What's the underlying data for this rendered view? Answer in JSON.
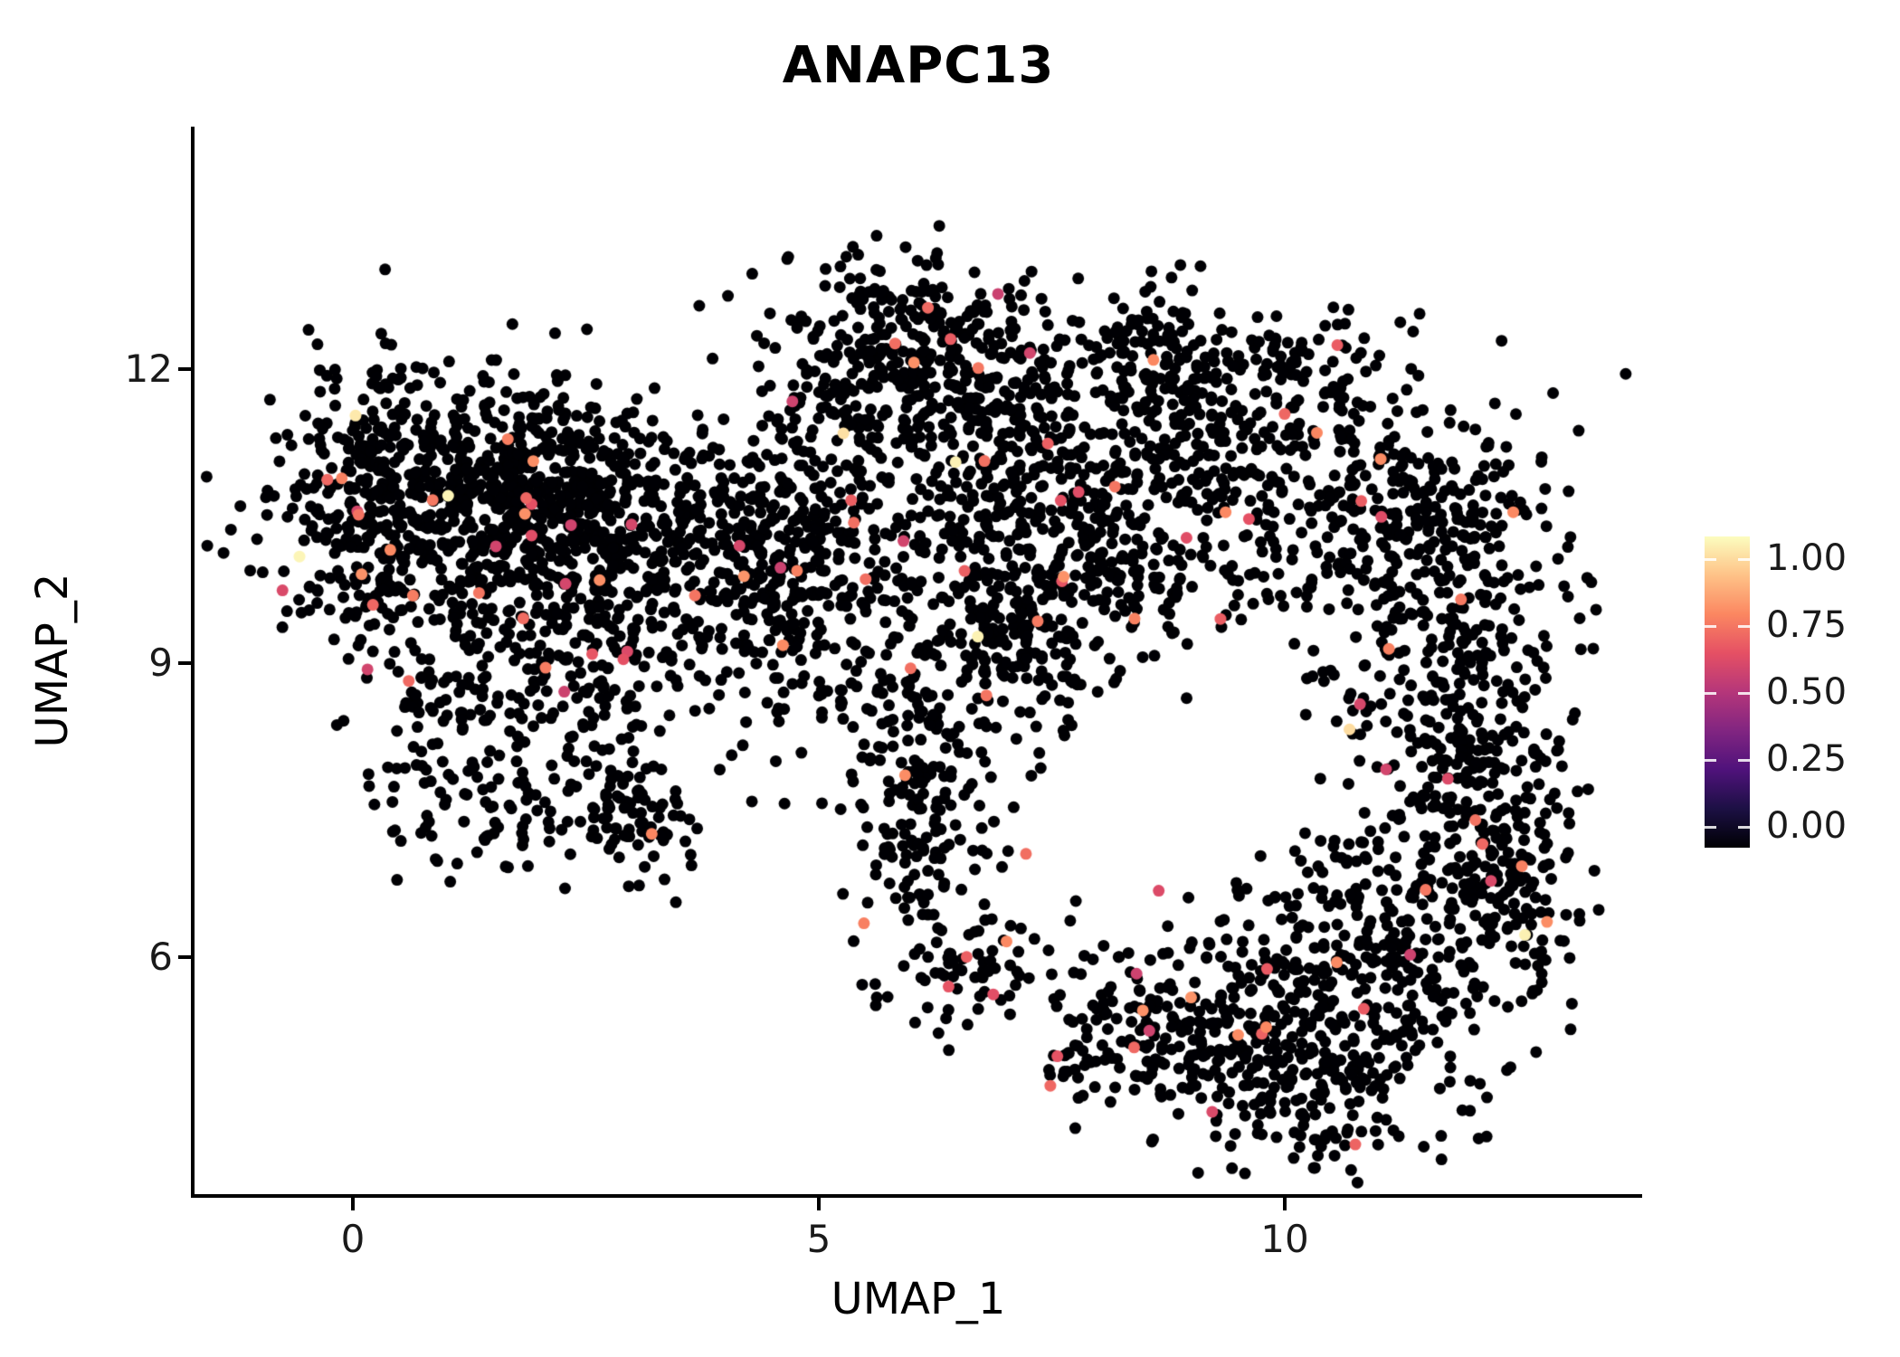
{
  "title": "ANAPC13",
  "axes": {
    "x": {
      "label": "UMAP_1",
      "ticks": [
        "0",
        "5",
        "10"
      ]
    },
    "y": {
      "label": "UMAP_2",
      "ticks": [
        "12",
        "9",
        "6"
      ]
    }
  },
  "colorbar": {
    "labels": [
      "1.00",
      "0.75",
      "0.50",
      "0.25",
      "0.00"
    ],
    "colormap": "magma",
    "low_color": "#000004",
    "high_color": "#fcfdbf"
  },
  "chart_data": {
    "type": "scatter",
    "title": "ANAPC13",
    "xlabel": "UMAP_1",
    "ylabel": "UMAP_2",
    "xlim": [
      -1.7,
      13.84
    ],
    "ylim": [
      3.58,
      14.475
    ],
    "x_ticks": [
      0,
      5,
      10
    ],
    "y_ticks": [
      6,
      9,
      12
    ],
    "legend_values": [
      1.0,
      0.75,
      0.5,
      0.25,
      0.0
    ],
    "colormap": "magma",
    "colormap_anchors": [
      [
        0.0,
        [
          0,
          0,
          4
        ]
      ],
      [
        0.125,
        [
          28,
          16,
          68
        ]
      ],
      [
        0.25,
        [
          79,
          18,
          123
        ]
      ],
      [
        0.375,
        [
          129,
          37,
          129
        ]
      ],
      [
        0.5,
        [
          181,
          54,
          122
        ]
      ],
      [
        0.625,
        [
          229,
          80,
          100
        ]
      ],
      [
        0.75,
        [
          251,
          135,
          97
        ]
      ],
      [
        0.875,
        [
          254,
          194,
          135
        ]
      ],
      [
        1.0,
        [
          252,
          253,
          191
        ]
      ]
    ],
    "point_radius_px": 6.5,
    "seed": 1337,
    "n_points_approx": 5200,
    "expression_probs": {
      "zero": 0.975,
      "mid": 0.023,
      "high": 0.002
    },
    "mid_value_range": [
      0.55,
      0.78
    ],
    "high_value_range": [
      0.93,
      1.0
    ],
    "hole": {
      "cx": 9.1,
      "cy": 7.9,
      "rx": 1.25,
      "ry": 1.15,
      "keep_prob": 0.12
    },
    "clusters": [
      [
        1.3,
        10.9,
        1.0,
        0.6,
        480
      ],
      [
        0.1,
        10.6,
        0.4,
        0.7,
        170
      ],
      [
        2.3,
        10.7,
        0.7,
        0.5,
        260
      ],
      [
        1.5,
        9.7,
        1.0,
        0.45,
        200
      ],
      [
        2.9,
        9.3,
        0.5,
        0.45,
        110
      ],
      [
        1.6,
        8.5,
        0.9,
        0.5,
        130
      ],
      [
        2.9,
        7.35,
        0.4,
        0.3,
        90
      ],
      [
        1.35,
        7.6,
        0.45,
        0.45,
        70
      ],
      [
        3.6,
        10.4,
        0.5,
        0.6,
        120
      ],
      [
        4.7,
        10.4,
        0.6,
        0.6,
        170
      ],
      [
        4.4,
        9.2,
        0.5,
        0.6,
        100
      ],
      [
        5.4,
        9.9,
        0.7,
        0.7,
        110
      ],
      [
        5.9,
        12.25,
        0.75,
        0.42,
        260
      ],
      [
        6.85,
        11.8,
        0.55,
        0.5,
        140
      ],
      [
        5.2,
        11.3,
        0.5,
        0.4,
        80
      ],
      [
        7.3,
        10.5,
        0.8,
        0.65,
        300
      ],
      [
        7.1,
        9.15,
        0.65,
        0.45,
        170
      ],
      [
        8.3,
        11.0,
        0.6,
        0.7,
        120
      ],
      [
        9.4,
        11.3,
        0.7,
        0.6,
        170
      ],
      [
        8.7,
        12.25,
        0.5,
        0.33,
        90
      ],
      [
        10.3,
        11.9,
        0.4,
        0.35,
        60
      ],
      [
        11.5,
        10.4,
        0.75,
        0.75,
        320
      ],
      [
        11.9,
        8.4,
        0.55,
        0.75,
        240
      ],
      [
        12.3,
        6.9,
        0.45,
        0.6,
        150
      ],
      [
        10.9,
        6.0,
        0.9,
        0.75,
        380
      ],
      [
        9.4,
        5.2,
        0.6,
        0.5,
        170
      ],
      [
        10.3,
        4.5,
        0.6,
        0.4,
        120
      ],
      [
        5.95,
        8.1,
        0.45,
        0.55,
        100
      ],
      [
        6.15,
        6.9,
        0.4,
        0.55,
        90
      ],
      [
        6.75,
        5.85,
        0.5,
        0.35,
        70
      ],
      [
        8.7,
        9.8,
        0.8,
        0.6,
        80
      ],
      [
        10.1,
        10.3,
        0.55,
        0.6,
        70
      ],
      [
        8.3,
        5.15,
        0.45,
        0.4,
        90
      ]
    ]
  }
}
